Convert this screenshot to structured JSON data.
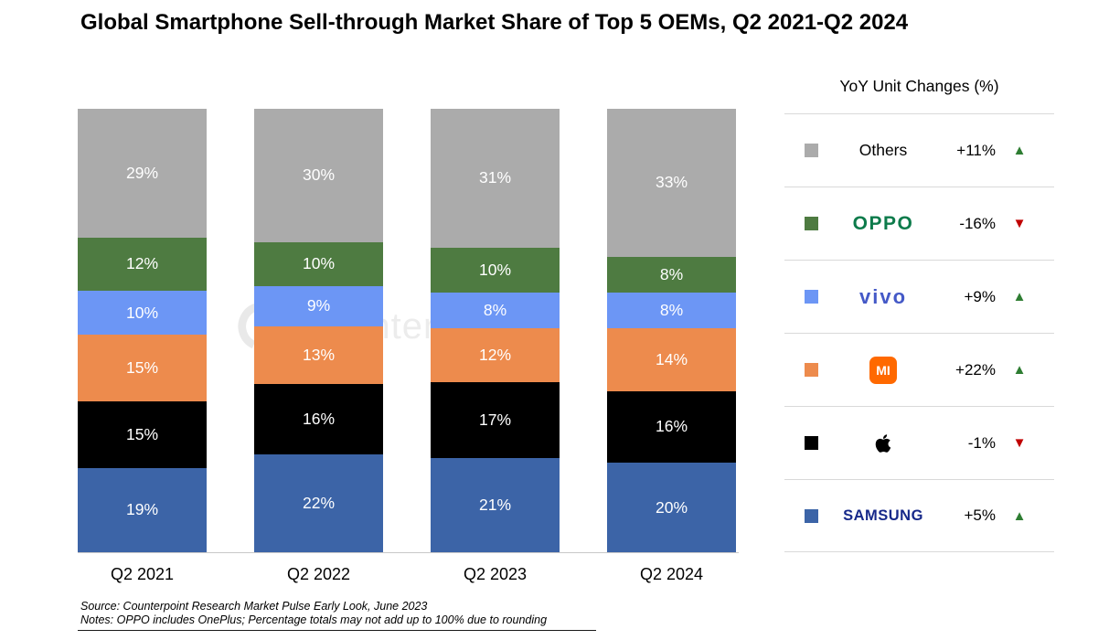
{
  "title": "Global Smartphone Sell-through Market Share of Top 5 OEMs, Q2 2021-Q2 2024",
  "watermark": "Counterpoint",
  "chart_data": {
    "type": "bar",
    "stacked": true,
    "title": "Global Smartphone Sell-through Market Share of Top 5 OEMs, Q2 2021-Q2 2024",
    "categories": [
      "Q2 2021",
      "Q2 2022",
      "Q2 2023",
      "Q2 2024"
    ],
    "unit": "%",
    "series": [
      {
        "name": "Samsung",
        "color": "#3C64A7",
        "values": [
          19,
          22,
          21,
          20
        ]
      },
      {
        "name": "Apple",
        "color": "#000000",
        "values": [
          15,
          16,
          17,
          16
        ]
      },
      {
        "name": "Xiaomi",
        "color": "#ED8B4D",
        "values": [
          15,
          13,
          12,
          14
        ]
      },
      {
        "name": "vivo",
        "color": "#6C96F5",
        "values": [
          10,
          9,
          8,
          8
        ]
      },
      {
        "name": "OPPO",
        "color": "#4E7B41",
        "values": [
          12,
          10,
          10,
          8
        ]
      },
      {
        "name": "Others",
        "color": "#ABABAB",
        "values": [
          29,
          30,
          31,
          33
        ]
      }
    ],
    "legend": {
      "title": "YoY Unit Changes (%)",
      "position": "right",
      "up_color": "#2E7D32",
      "down_color": "#C00000",
      "rows": [
        {
          "label": "Others",
          "logo": "plain",
          "logo_color": "#000000",
          "swatch": "#ABABAB",
          "change": "+11%",
          "direction": "up"
        },
        {
          "label": "OPPO",
          "logo": "oppo",
          "logo_color": "#0D7B4B",
          "swatch": "#4E7B41",
          "change": "-16%",
          "direction": "down"
        },
        {
          "label": "vivo",
          "logo": "vivo",
          "logo_color": "#4459C7",
          "swatch": "#6C96F5",
          "change": "+9%",
          "direction": "up"
        },
        {
          "label": "MI",
          "logo": "mi",
          "logo_color": "#FF6900",
          "swatch": "#ED8B4D",
          "change": "+22%",
          "direction": "up"
        },
        {
          "label": "Apple",
          "logo": "apple",
          "logo_color": "#000000",
          "swatch": "#000000",
          "change": "-1%",
          "direction": "down"
        },
        {
          "label": "SAMSUNG",
          "logo": "samsung",
          "logo_color": "#17298A",
          "swatch": "#3C64A7",
          "change": "+5%",
          "direction": "up"
        }
      ]
    }
  },
  "footer": {
    "source": "Source: Counterpoint Research Market Pulse Early Look, June 2023",
    "notes": "Notes: OPPO includes OnePlus; Percentage totals may not add up to 100% due to rounding"
  }
}
